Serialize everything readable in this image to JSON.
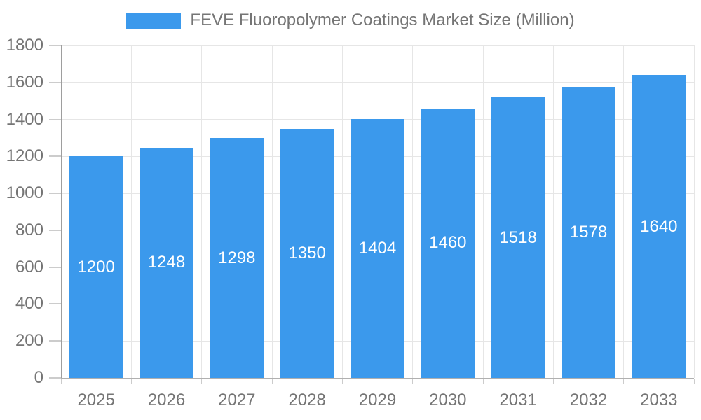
{
  "chart_data": {
    "type": "bar",
    "title": "FEVE Fluoropolymer Coatings Market Size (Million)",
    "legend_entries": [
      "FEVE Fluoropolymer Coatings Market Size (Million)"
    ],
    "legend_position": "top-center",
    "categories": [
      "2025",
      "2026",
      "2027",
      "2028",
      "2029",
      "2030",
      "2031",
      "2032",
      "2033"
    ],
    "series": [
      {
        "name": "FEVE Fluoropolymer Coatings Market Size (Million)",
        "values": [
          1200,
          1248,
          1298,
          1350,
          1404,
          1460,
          1518,
          1578,
          1640
        ]
      }
    ],
    "xlabel": "",
    "ylabel": "",
    "ylim": [
      0,
      1800
    ],
    "yticks": [
      0,
      200,
      400,
      600,
      800,
      1000,
      1200,
      1400,
      1600,
      1800
    ],
    "grid": true,
    "value_labels": "inside-center",
    "colors": {
      "bar": "#3b99ec",
      "value_label_text": "#ffffff",
      "axis_text": "#757575",
      "gridline": "#e6e6e6",
      "y_axis_line": "#9e9e9e",
      "x_axis_line": "#b0b0b0",
      "tick": "#cccccc",
      "background": "#ffffff"
    }
  }
}
